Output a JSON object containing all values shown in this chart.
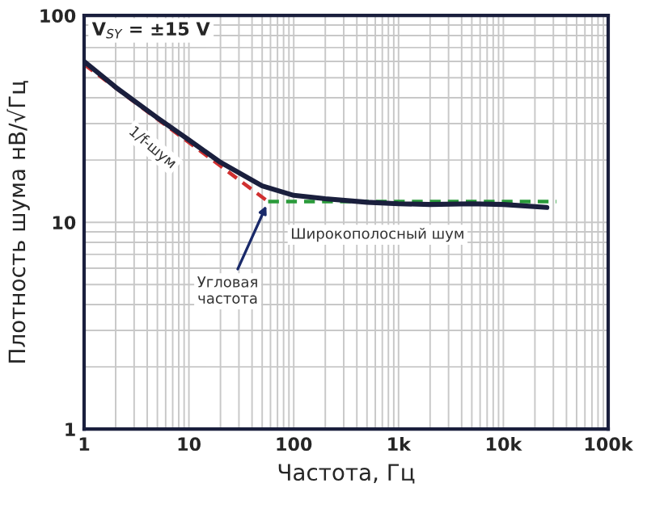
{
  "chart_data": {
    "type": "line",
    "xlabel": "Частота, Гц",
    "ylabel": "Плотность шума нВ/√Гц",
    "log": "xy",
    "xlim": [
      1,
      100000
    ],
    "ylim": [
      1,
      100
    ],
    "xticks": [
      1,
      10,
      100,
      {
        "value": 1000,
        "label": "1k"
      },
      {
        "value": 10000,
        "label": "10k"
      },
      {
        "value": 100000,
        "label": "100k"
      }
    ],
    "yticks": [
      1,
      10,
      100
    ],
    "grid": true,
    "legend": false,
    "marker": "none",
    "series": [
      {
        "color": "#1a1f3d",
        "line_style": "solid",
        "x": [
          1,
          2,
          5,
          10,
          20,
          50,
          100,
          200,
          500,
          1000,
          2000,
          5000,
          10000,
          26000
        ],
        "values": [
          60,
          45,
          32,
          25,
          19.5,
          15,
          13.5,
          13,
          12.5,
          12.3,
          12.2,
          12.3,
          12.2,
          11.8
        ]
      },
      {
        "color": "#d03030",
        "line_style": "dashed",
        "x": [
          1,
          57
        ],
        "values": [
          58,
          12.6
        ]
      },
      {
        "color": "#2a9a3a",
        "line_style": "dashed",
        "x": [
          57,
          32000
        ],
        "values": [
          12.6,
          12.6
        ]
      }
    ],
    "annotations": [
      "V$_{SY}$ = ±15 V",
      "1/f-шум",
      {
        "text": "Угловая\nчастота",
        "x": 57,
        "y": 12.6
      },
      "Широкополосный шум"
    ]
  }
}
